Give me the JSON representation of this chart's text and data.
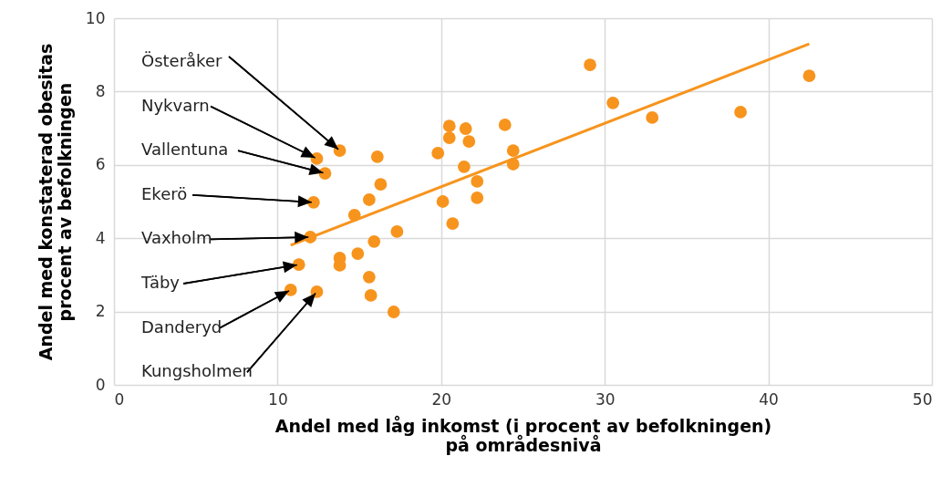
{
  "chart_data": {
    "type": "scatter",
    "xlabel": "Andel med låg inkomst (i procent av befolkningen)\npå områdesnivå",
    "ylabel": "Andel med konstaterad obesitas\nprocent av befolkningen",
    "xlim": [
      0,
      50
    ],
    "xticks": [
      0,
      10,
      20,
      30,
      40,
      50
    ],
    "ylim": [
      0,
      10
    ],
    "yticks": [
      0,
      2,
      4,
      6,
      8,
      10
    ],
    "grid": true,
    "series": [
      {
        "marker": "circle",
        "color": "#f7941d",
        "x": [
          13.8,
          12.4,
          12.9,
          12.2,
          12.0,
          11.3,
          10.8,
          12.4,
          16.1,
          16.3,
          15.6,
          14.7,
          17.3,
          15.9,
          14.9,
          13.8,
          13.8,
          15.6,
          15.7,
          17.1,
          20.5,
          21.5,
          23.9,
          20.5,
          21.7,
          19.8,
          24.4,
          24.4,
          21.4,
          22.2,
          22.2,
          20.1,
          20.7,
          29.1,
          30.5,
          32.9,
          38.3,
          42.5
        ],
        "values": [
          6.39,
          6.17,
          5.77,
          4.98,
          4.03,
          3.28,
          2.59,
          2.54,
          6.22,
          5.47,
          5.05,
          4.63,
          4.18,
          3.91,
          3.58,
          3.46,
          3.26,
          2.94,
          2.44,
          1.99,
          7.06,
          6.99,
          7.09,
          6.74,
          6.64,
          6.32,
          6.39,
          6.02,
          5.95,
          5.55,
          5.1,
          5.0,
          4.4,
          8.73,
          7.69,
          7.29,
          7.44,
          8.43
        ]
      },
      {
        "type": "line",
        "marker": "none",
        "color": "#f7941d",
        "x": [
          10.8,
          42.5
        ],
        "values": [
          3.81,
          9.3
        ]
      }
    ],
    "annotations": [
      {
        "text": "Österåker",
        "x": 13.8,
        "y": 6.39
      },
      {
        "text": "Nykvarn",
        "x": 12.4,
        "y": 6.17
      },
      {
        "text": "Vallentuna",
        "x": 12.9,
        "y": 5.77
      },
      {
        "text": "Ekerö",
        "x": 12.2,
        "y": 4.98
      },
      {
        "text": "Vaxholm",
        "x": 12.0,
        "y": 4.03
      },
      {
        "text": "Täby",
        "x": 11.3,
        "y": 3.28
      },
      {
        "text": "Danderyd",
        "x": 10.8,
        "y": 2.59
      },
      {
        "text": "Kungsholmen",
        "x": 12.4,
        "y": 2.54
      }
    ]
  }
}
